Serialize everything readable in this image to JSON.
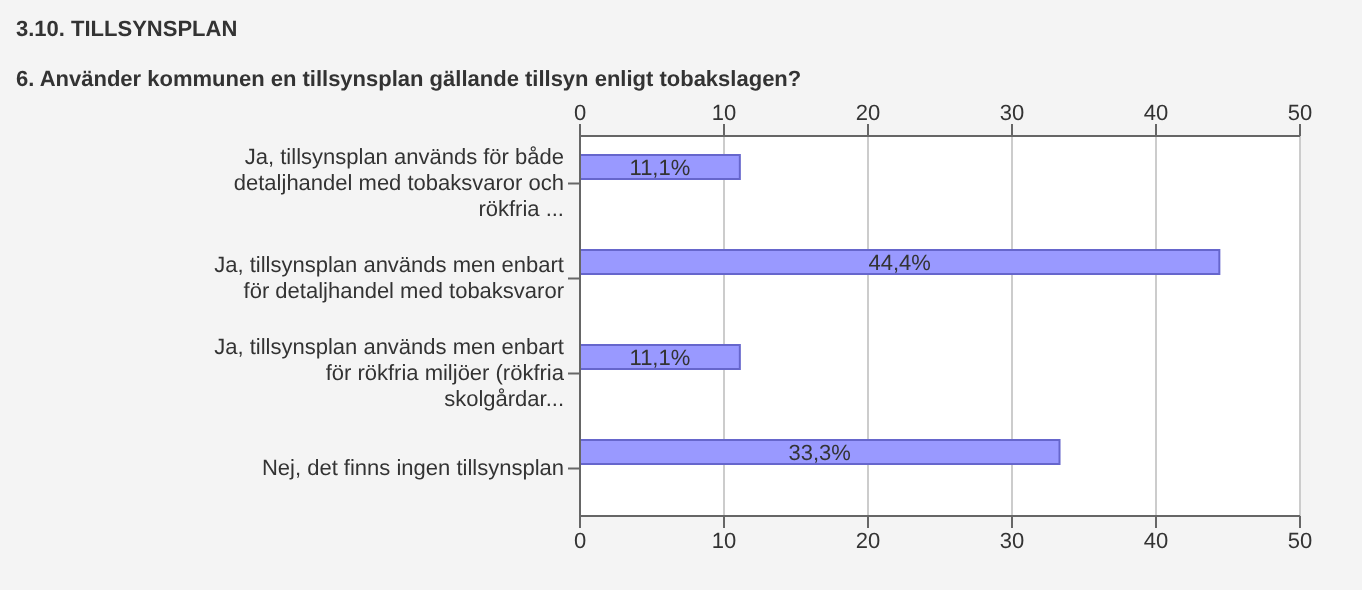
{
  "chart_data": {
    "type": "bar",
    "orientation": "horizontal",
    "title": "3.10. TILLSYNSPLAN",
    "subtitle": "6. Använder kommunen en tillsynsplan gällande tillsyn enligt tobakslagen?",
    "categories": [
      "Ja, tillsynsplan används för både detaljhandel med tobaksvaror och rökfria ...",
      "Ja, tillsynsplan används men enbart för detaljhandel med tobaksvaror",
      "Ja, tillsynsplan används men enbart för rökfria miljöer (rökfria skolgårdar...",
      "Nej, det finns ingen tillsynsplan"
    ],
    "values": [
      11.1,
      44.4,
      11.1,
      33.3
    ],
    "value_labels": [
      "11,1%",
      "44,4%",
      "11,1%",
      "33,3%"
    ],
    "color": "#9999ff",
    "xlim": [
      0,
      50
    ],
    "xticks": [
      0,
      10,
      20,
      30,
      40,
      50
    ],
    "x2lim": [
      0,
      50
    ],
    "x2ticks": [
      0,
      10,
      20,
      30,
      40,
      50
    ],
    "grid": "x"
  }
}
